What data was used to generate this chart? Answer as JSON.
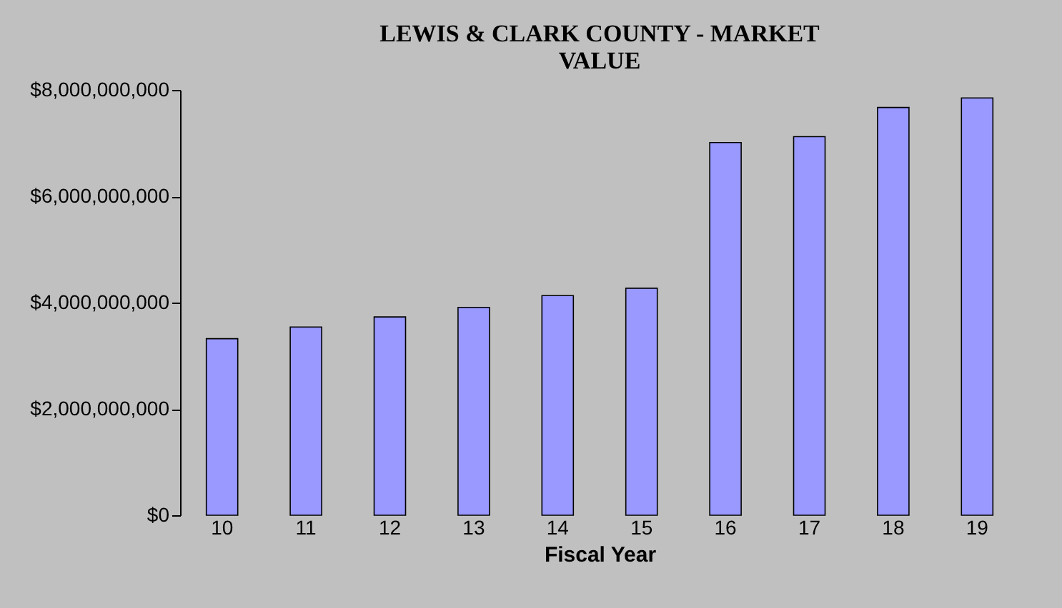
{
  "chart_data": {
    "type": "bar",
    "title": [
      "LEWIS & CLARK COUNTY - MARKET",
      "VALUE"
    ],
    "xlabel": "Fiscal Year",
    "categories": [
      "10",
      "11",
      "12",
      "13",
      "14",
      "15",
      "16",
      "17",
      "18",
      "19"
    ],
    "values": [
      3320000000,
      3540000000,
      3730000000,
      3910000000,
      4130000000,
      4270000000,
      7010000000,
      7120000000,
      7670000000,
      7850000000
    ],
    "color": "#9999ff",
    "ylim": [
      0,
      8000000000
    ],
    "yticks": [
      {
        "value": 0,
        "label": "$0"
      },
      {
        "value": 2000000000,
        "label": "$2,000,000,000"
      },
      {
        "value": 4000000000,
        "label": "$4,000,000,000"
      },
      {
        "value": 6000000000,
        "label": "$6,000,000,000"
      },
      {
        "value": 8000000000,
        "label": "$8,000,000,000"
      }
    ],
    "grid": false
  }
}
